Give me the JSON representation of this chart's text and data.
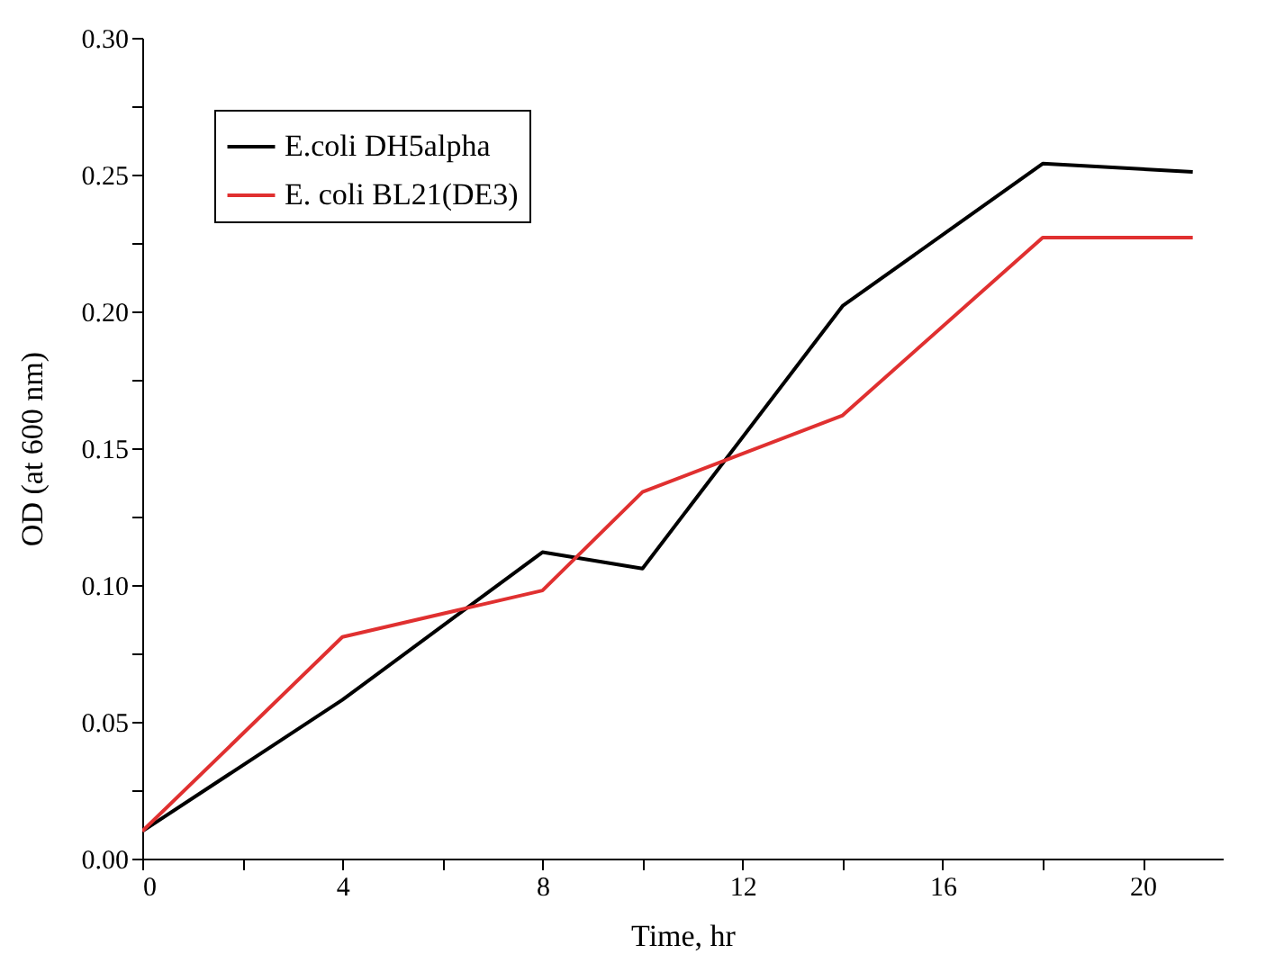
{
  "chart_data": {
    "type": "line",
    "xlabel": "Time, hr",
    "ylabel": "OD  (at 600 nm)",
    "x": [
      0,
      4,
      8,
      10,
      14,
      18,
      21
    ],
    "series": [
      {
        "name": "E.coli DH5alpha",
        "color": "#000000",
        "values": [
          0.01,
          0.058,
          0.112,
          0.106,
          0.202,
          0.254,
          0.251
        ]
      },
      {
        "name": "E. coli BL21(DE3)",
        "color": "#e03030",
        "values": [
          0.01,
          0.081,
          0.098,
          0.134,
          0.162,
          0.227,
          0.227
        ]
      }
    ],
    "xlim": [
      0,
      21.6
    ],
    "xticks": [
      0,
      {
        "value": 2,
        "label": null
      },
      4,
      {
        "value": 6,
        "label": null
      },
      8,
      {
        "value": 10,
        "label": null
      },
      12,
      {
        "value": 14,
        "label": null
      },
      16,
      {
        "value": 18,
        "label": null
      },
      20
    ],
    "ylim": [
      0,
      0.3
    ],
    "yticks": [
      {
        "value": 0,
        "label": "0.00"
      },
      {
        "value": 0.025,
        "label": null
      },
      {
        "value": 0.05,
        "label": "0.05"
      },
      {
        "value": 0.075,
        "label": null
      },
      {
        "value": 0.1,
        "label": "0.10"
      },
      {
        "value": 0.125,
        "label": null
      },
      {
        "value": 0.15,
        "label": "0.15"
      },
      {
        "value": 0.175,
        "label": null
      },
      {
        "value": 0.2,
        "label": "0.20"
      },
      {
        "value": 0.225,
        "label": null
      },
      {
        "value": 0.25,
        "label": "0.25"
      },
      {
        "value": 0.275,
        "label": null
      },
      {
        "value": 0.3,
        "label": "0.30"
      }
    ],
    "grid": false,
    "legend": "top left",
    "marker": "none",
    "line_style": "solid"
  }
}
